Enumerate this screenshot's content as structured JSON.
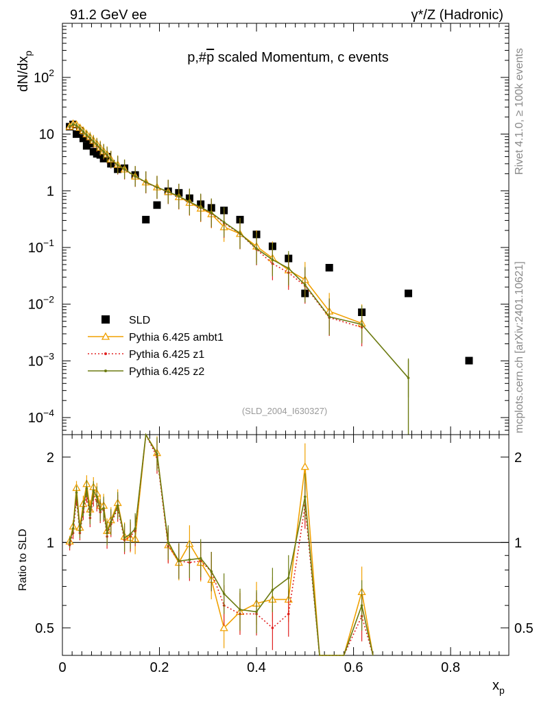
{
  "header": {
    "left": "91.2 GeV ee",
    "right": "γ*/Z (Hadronic)"
  },
  "side": {
    "rivet": "Rivet 4.1.0, ≥ 100k events",
    "mcplots": "mcplots.cern.ch [arXiv:2401.10621]"
  },
  "colors": {
    "sld": "#000000",
    "ambt1": "#f0a000",
    "z1": "#e02020",
    "z2": "#6b7a10",
    "ref": "#000000"
  },
  "chart_data": [
    {
      "type": "scatter",
      "title": "p,#p̅ scaled Momentum, c events",
      "title_parts": {
        "before": "p,#",
        "bar": "p",
        "after": " scaled Momentum, c events"
      },
      "ylabel_base": "dN/dx",
      "ylabel_sub": "p",
      "xlim": [
        0,
        0.92
      ],
      "ylim": [
        5e-05,
        900
      ],
      "yscale": "log",
      "yticks": [
        {
          "value": 0.0001,
          "base": "10",
          "exp": "−4"
        },
        {
          "value": 0.001,
          "base": "10",
          "exp": "−3"
        },
        {
          "value": 0.01,
          "base": "10",
          "exp": "−2"
        },
        {
          "value": 0.1,
          "base": "10",
          "exp": "−1"
        },
        {
          "value": 1,
          "base": "1",
          "exp": ""
        },
        {
          "value": 10,
          "base": "10",
          "exp": ""
        },
        {
          "value": 100,
          "base": "10",
          "exp": "2"
        }
      ],
      "watermark": "(SLD_2004_I630327)",
      "legend_position": "lower-left",
      "series": [
        {
          "name": "SLD",
          "key": "sld",
          "x": [
            0.015,
            0.022,
            0.029,
            0.036,
            0.043,
            0.05,
            0.057,
            0.064,
            0.071,
            0.078,
            0.085,
            0.092,
            0.1,
            0.114,
            0.128,
            0.15,
            0.172,
            0.195,
            0.218,
            0.24,
            0.262,
            0.285,
            0.307,
            0.333,
            0.366,
            0.4,
            0.433,
            0.466,
            0.5,
            0.55,
            0.617,
            0.713,
            0.838
          ],
          "y": [
            13.5,
            14.8,
            10,
            11.5,
            8.4,
            6.2,
            6.8,
            4.9,
            4.5,
            4.3,
            3.7,
            4.0,
            3.0,
            2.4,
            2.5,
            1.9,
            0.31,
            0.56,
            0.98,
            0.92,
            0.74,
            0.58,
            0.5,
            0.45,
            0.31,
            0.17,
            0.105,
            0.064,
            0.0155,
            0.044,
            0.0072,
            0.0155,
            0.00101
          ]
        },
        {
          "name": "Pythia 6.425 ambt1",
          "key": "ambt1",
          "marker": "triangle",
          "x": [
            0.015,
            0.022,
            0.029,
            0.036,
            0.043,
            0.05,
            0.057,
            0.064,
            0.071,
            0.078,
            0.085,
            0.092,
            0.1,
            0.114,
            0.128,
            0.15,
            0.172,
            0.195,
            0.218,
            0.24,
            0.262,
            0.285,
            0.307,
            0.333,
            0.366,
            0.4,
            0.433,
            0.466,
            0.5,
            0.55,
            0.617
          ],
          "y": [
            13.6,
            15.3,
            14.8,
            13.0,
            11.5,
            10.0,
            8.9,
            7.7,
            6.7,
            5.8,
            5.0,
            4.4,
            3.6,
            2.9,
            2.4,
            1.8,
            1.42,
            1.16,
            0.96,
            0.78,
            0.62,
            0.49,
            0.39,
            0.23,
            0.175,
            0.105,
            0.065,
            0.04,
            0.027,
            0.0075,
            0.0046
          ]
        },
        {
          "name": "Pythia 6.425 z1",
          "key": "z1",
          "marker": "dot",
          "dotted": true,
          "x": [
            0.015,
            0.022,
            0.029,
            0.036,
            0.043,
            0.05,
            0.057,
            0.064,
            0.071,
            0.078,
            0.085,
            0.092,
            0.1,
            0.114,
            0.128,
            0.15,
            0.172,
            0.195,
            0.218,
            0.24,
            0.262,
            0.285,
            0.307,
            0.333,
            0.366,
            0.4,
            0.433,
            0.466,
            0.5,
            0.55,
            0.617
          ],
          "y": [
            13.2,
            14.6,
            14.0,
            12.4,
            10.8,
            9.4,
            8.3,
            7.2,
            6.3,
            5.5,
            4.8,
            4.2,
            3.5,
            2.8,
            2.35,
            1.78,
            1.4,
            1.14,
            0.95,
            0.79,
            0.63,
            0.5,
            0.4,
            0.27,
            0.175,
            0.093,
            0.052,
            0.036,
            0.021,
            0.0058,
            0.0039
          ]
        },
        {
          "name": "Pythia 6.425 z2",
          "key": "z2",
          "marker": "dot",
          "x": [
            0.015,
            0.022,
            0.029,
            0.036,
            0.043,
            0.05,
            0.057,
            0.064,
            0.071,
            0.078,
            0.085,
            0.092,
            0.1,
            0.114,
            0.128,
            0.15,
            0.172,
            0.195,
            0.218,
            0.24,
            0.262,
            0.285,
            0.307,
            0.333,
            0.366,
            0.4,
            0.433,
            0.466,
            0.5,
            0.55,
            0.617,
            0.713
          ],
          "y": [
            13.5,
            14.9,
            14.2,
            12.6,
            11.0,
            9.6,
            8.5,
            7.4,
            6.5,
            5.6,
            4.9,
            4.3,
            3.55,
            2.85,
            2.4,
            1.8,
            1.42,
            1.15,
            0.96,
            0.8,
            0.64,
            0.51,
            0.41,
            0.28,
            0.178,
            0.096,
            0.061,
            0.043,
            0.022,
            0.006,
            0.0044,
            0.0005
          ]
        }
      ]
    },
    {
      "type": "line",
      "ylabel": "Ratio to SLD",
      "xlabel_base": "x",
      "xlabel_sub": "p",
      "xlim": [
        0,
        0.92
      ],
      "ylim": [
        0.4,
        2.4
      ],
      "yscale": "log",
      "yticks": [
        {
          "value": 0.5,
          "label": "0.5"
        },
        {
          "value": 1,
          "label": "1"
        },
        {
          "value": 2,
          "label": "2"
        }
      ],
      "xticks": [
        {
          "value": 0,
          "label": "0"
        },
        {
          "value": 0.2,
          "label": "0.2"
        },
        {
          "value": 0.4,
          "label": "0.4"
        },
        {
          "value": 0.6,
          "label": "0.6"
        },
        {
          "value": 0.8,
          "label": "0.8"
        }
      ],
      "reference_line": 1,
      "series": [
        {
          "name": "Pythia 6.425 ambt1",
          "key": "ambt1",
          "x": [
            0.015,
            0.022,
            0.029,
            0.036,
            0.043,
            0.05,
            0.057,
            0.064,
            0.071,
            0.078,
            0.085,
            0.092,
            0.1,
            0.114,
            0.128,
            0.14,
            0.15,
            0.172,
            0.195,
            0.218,
            0.24,
            0.262,
            0.285,
            0.307,
            0.333,
            0.366,
            0.4,
            0.433,
            0.466,
            0.5,
            0.53,
            0.58,
            0.617,
            0.64
          ],
          "y": [
            1.01,
            1.14,
            1.56,
            1.13,
            1.37,
            1.61,
            1.31,
            1.57,
            1.49,
            1.35,
            1.35,
            1.1,
            1.2,
            1.38,
            1.05,
            1.04,
            1.03,
            4.5,
            2.07,
            0.98,
            0.85,
            0.99,
            0.85,
            0.74,
            0.5,
            0.57,
            0.61,
            0.63,
            0.63,
            1.85,
            0.2,
            0.2,
            0.67,
            0.2
          ]
        },
        {
          "name": "Pythia 6.425 z1",
          "key": "z1",
          "dotted": true,
          "x": [
            0.015,
            0.022,
            0.029,
            0.036,
            0.043,
            0.05,
            0.057,
            0.064,
            0.071,
            0.078,
            0.085,
            0.092,
            0.1,
            0.114,
            0.128,
            0.14,
            0.15,
            0.172,
            0.195,
            0.218,
            0.24,
            0.262,
            0.285,
            0.307,
            0.333,
            0.366,
            0.4,
            0.433,
            0.466,
            0.5,
            0.53,
            0.58,
            0.617,
            0.64
          ],
          "y": [
            0.98,
            1.08,
            1.42,
            1.08,
            1.28,
            1.48,
            1.22,
            1.45,
            1.4,
            1.28,
            1.3,
            1.05,
            1.16,
            1.32,
            1.02,
            1.05,
            1.1,
            4.4,
            2.0,
            0.97,
            0.86,
            0.85,
            0.86,
            0.79,
            0.6,
            0.56,
            0.56,
            0.5,
            0.56,
            1.35,
            0.2,
            0.2,
            0.55,
            0.2
          ]
        },
        {
          "name": "Pythia 6.425 z2",
          "key": "z2",
          "x": [
            0.015,
            0.022,
            0.029,
            0.036,
            0.043,
            0.05,
            0.057,
            0.064,
            0.071,
            0.078,
            0.085,
            0.092,
            0.1,
            0.114,
            0.128,
            0.14,
            0.15,
            0.172,
            0.195,
            0.218,
            0.24,
            0.262,
            0.285,
            0.307,
            0.333,
            0.366,
            0.4,
            0.433,
            0.466,
            0.5,
            0.53,
            0.58,
            0.617,
            0.64
          ],
          "y": [
            1.0,
            1.12,
            1.5,
            1.1,
            1.32,
            1.55,
            1.25,
            1.52,
            1.45,
            1.3,
            1.32,
            1.08,
            1.18,
            1.35,
            1.04,
            1.07,
            1.12,
            4.5,
            2.05,
            1.0,
            0.86,
            0.87,
            0.88,
            0.79,
            0.66,
            0.58,
            0.57,
            0.68,
            0.75,
            1.45,
            0.2,
            0.2,
            0.6,
            0.2
          ]
        }
      ]
    }
  ]
}
